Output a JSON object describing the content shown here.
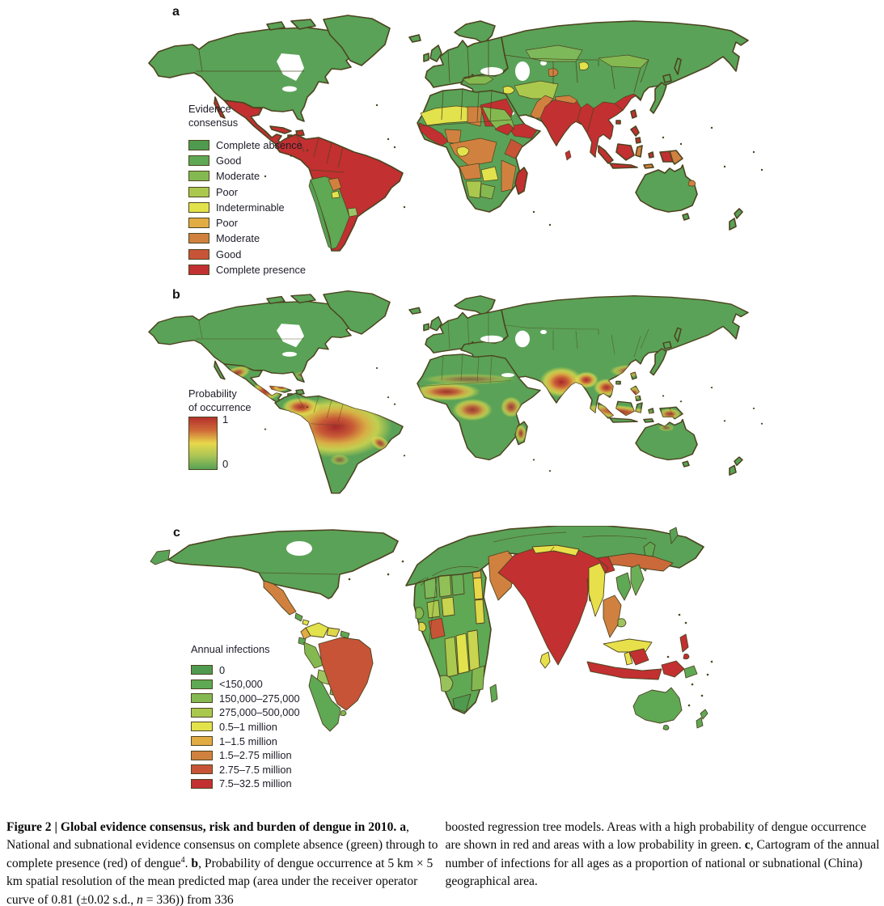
{
  "figure": {
    "background": "#ffffff",
    "palette": {
      "land_green": "#5aa257",
      "coast": "#4c4420",
      "ramp": [
        "#4f9a4f",
        "#5fa854",
        "#84b951",
        "#abc84e",
        "#e2e24c",
        "#e2ac44",
        "#d1813f",
        "#c75437",
        "#c23031"
      ]
    },
    "panel_a": {
      "label": "a",
      "legend": {
        "title_lines": [
          "Evidence",
          "consensus"
        ],
        "items": [
          {
            "label": "Complete absence",
            "color": "#4f9a4f"
          },
          {
            "label": "Good",
            "color": "#5fa854"
          },
          {
            "label": "Moderate",
            "color": "#84b951"
          },
          {
            "label": "Poor",
            "color": "#abc84e"
          },
          {
            "label": "Indeterminable",
            "color": "#e2e24c"
          },
          {
            "label": "Poor",
            "color": "#e2ac44"
          },
          {
            "label": "Moderate",
            "color": "#d1813f"
          },
          {
            "label": "Good",
            "color": "#c75437"
          },
          {
            "label": "Complete presence",
            "color": "#c23031"
          }
        ]
      }
    },
    "panel_b": {
      "label": "b",
      "legend": {
        "title_lines": [
          "Probability",
          "of occurrence"
        ],
        "max_label": "1",
        "min_label": "0",
        "gradient": [
          "#b4312d",
          "#cf6a38",
          "#e8d84b",
          "#a8c455",
          "#58a155"
        ]
      }
    },
    "panel_c": {
      "label": "c",
      "legend": {
        "title": "Annual infections",
        "items": [
          {
            "label": "0",
            "color": "#4f9a4f"
          },
          {
            "label": "<150,000",
            "color": "#5fa854"
          },
          {
            "label": "150,000–275,000",
            "color": "#84b951"
          },
          {
            "label": "275,000–500,000",
            "color": "#abc84e"
          },
          {
            "label": "0.5–1 million",
            "color": "#e2e24c"
          },
          {
            "label": "1–1.5 million",
            "color": "#e2ac44"
          },
          {
            "label": "1.5–2.75 million",
            "color": "#d1813f"
          },
          {
            "label": "2.75–7.5 million",
            "color": "#c75437"
          },
          {
            "label": "7.5–32.5 million",
            "color": "#c23031"
          }
        ]
      }
    },
    "caption": {
      "left": {
        "heading": "Figure 2 | Global evidence consensus, risk and burden of dengue in 2010.",
        "a_label": "a",
        "a_text": ", National and subnational evidence consensus on complete absence (green) through to complete presence (red) of dengue",
        "a_ref": "4",
        "a_period": ". ",
        "b_label": "b",
        "b_text": ", Probability of dengue occurrence at 5 km × 5 km spatial resolution of the mean predicted map (area under the receiver operator curve of 0.81 (±0.02 s.d., ",
        "n_var": "n",
        "b_text2": " = 336)) from 336"
      },
      "right": {
        "text1": "boosted regression tree models. Areas with a high probability of dengue occurrence are shown in red and areas with a low probability in green. ",
        "c_label": "c",
        "c_text": ", Cartogram of the annual number of infections for all ages as a proportion of national or subnational (China) geographical area."
      }
    }
  }
}
